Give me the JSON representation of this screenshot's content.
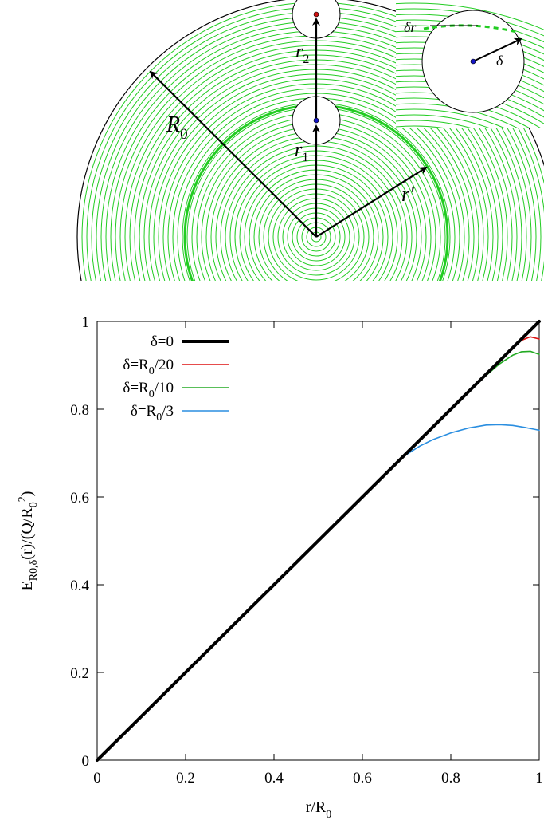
{
  "diagram": {
    "labels": {
      "R0": "R",
      "R0_sub": "0",
      "r1": "r",
      "r1_sub": "1",
      "r2": "r",
      "r2_sub": "2",
      "rprime": "r′",
      "inset_delta": "δ",
      "inset_delta_r": "δr"
    },
    "colors": {
      "rings": "#22cc22",
      "outline": "#000000",
      "arrow": "#000000",
      "charge_blue": "#1515c8",
      "charge_red": "#d01010"
    }
  },
  "chart_data": {
    "type": "line",
    "x_label": "r/R",
    "x_label_sub": "0",
    "y_label": "E",
    "y_label_sub": "R0,δ",
    "y_label_rest": "(r)/(Q/R",
    "y_label_sub2": "0",
    "y_label_sup": "2",
    "y_label_end": ")",
    "xlim": [
      0,
      1
    ],
    "ylim": [
      0,
      1
    ],
    "x_ticks": [
      "0",
      "0.2",
      "0.4",
      "0.6",
      "0.8",
      "1"
    ],
    "y_ticks": [
      "0",
      "0.2",
      "0.4",
      "0.6",
      "0.8",
      "1"
    ],
    "grid": false,
    "legend_position": "top-left",
    "series": [
      {
        "name": "δ=0",
        "color": "#000000",
        "width": 4,
        "x": [
          0,
          0.5,
          1.0
        ],
        "y": [
          0,
          0.5,
          1.0
        ]
      },
      {
        "name": "δ=R0/20",
        "color": "#dd1111",
        "width": 1.6,
        "x": [
          0,
          0.5,
          0.9,
          0.92,
          0.94,
          0.96,
          0.98,
          1.0
        ],
        "y": [
          0,
          0.5,
          0.9,
          0.92,
          0.94,
          0.957,
          0.965,
          0.96
        ]
      },
      {
        "name": "δ=R0/10",
        "color": "#22aa22",
        "width": 1.6,
        "x": [
          0,
          0.5,
          0.8,
          0.84,
          0.88,
          0.91,
          0.94,
          0.96,
          0.98,
          1.0
        ],
        "y": [
          0,
          0.5,
          0.8,
          0.84,
          0.877,
          0.903,
          0.923,
          0.931,
          0.932,
          0.925
        ]
      },
      {
        "name": "δ=R0/3",
        "color": "#2a8ee0",
        "width": 1.6,
        "x": [
          0,
          0.5,
          0.68,
          0.7,
          0.73,
          0.76,
          0.8,
          0.84,
          0.88,
          0.91,
          0.94,
          0.97,
          1.0
        ],
        "y": [
          0,
          0.5,
          0.68,
          0.697,
          0.716,
          0.731,
          0.746,
          0.757,
          0.764,
          0.765,
          0.763,
          0.758,
          0.752
        ]
      }
    ],
    "legend": [
      {
        "text": "δ=0",
        "sub": "",
        "after": ""
      },
      {
        "text": "δ=R",
        "sub": "0",
        "after": "/20"
      },
      {
        "text": "δ=R",
        "sub": "0",
        "after": "/10"
      },
      {
        "text": "δ=R",
        "sub": "0",
        "after": "/3"
      }
    ]
  }
}
